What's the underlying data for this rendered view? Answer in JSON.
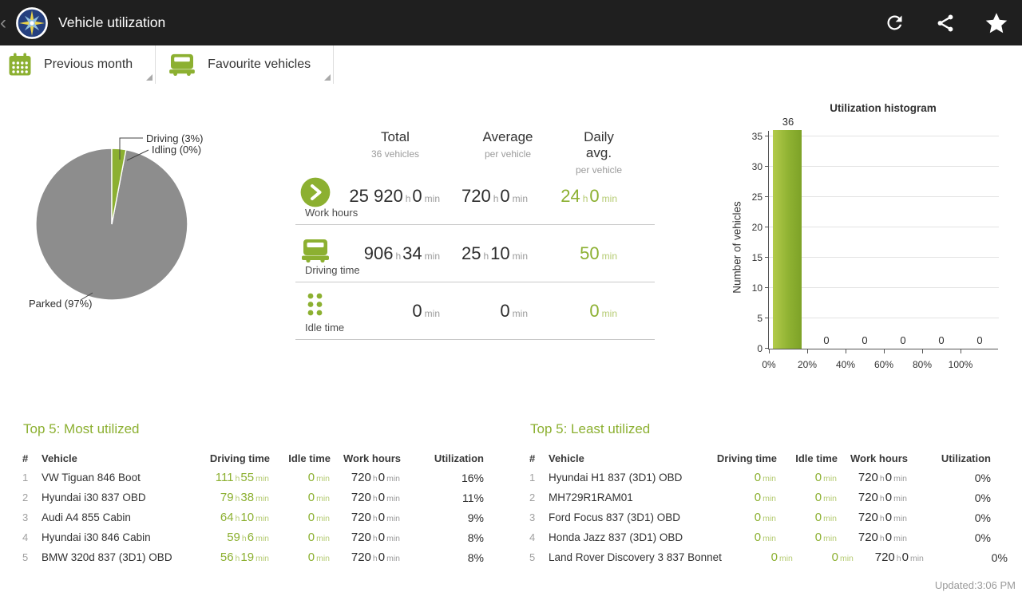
{
  "colors": {
    "accent": "#8cb031",
    "bar_green": "#8fb232",
    "pie_gray": "#8d8d8d",
    "action_bar": "#1f1f1f"
  },
  "action_bar": {
    "back": "‹",
    "title": "Vehicle utilization"
  },
  "filters": {
    "period": "Previous month",
    "vehicles": "Favourite vehicles"
  },
  "pie": {
    "labels": {
      "driving": "Driving (3%)",
      "idling": "Idling (0%)",
      "parked": "Parked (97%)"
    }
  },
  "stats": {
    "columns": [
      {
        "title": "Total",
        "subtitle": "36 vehicles"
      },
      {
        "title": "Average",
        "subtitle": "per vehicle"
      },
      {
        "title": "Daily avg.",
        "subtitle": "per vehicle"
      }
    ],
    "rows": [
      {
        "label": "Work hours",
        "icon": "play-circle-icon",
        "total": [
          [
            "25 920",
            "h"
          ],
          [
            "0",
            "min"
          ]
        ],
        "average": [
          [
            "720",
            "h"
          ],
          [
            "0",
            "min"
          ]
        ],
        "daily": [
          [
            "24",
            "h"
          ],
          [
            "0",
            "min"
          ]
        ]
      },
      {
        "label": "Driving time",
        "icon": "truck-icon",
        "total": [
          [
            "906",
            "h"
          ],
          [
            "34",
            "min"
          ]
        ],
        "average": [
          [
            "25",
            "h"
          ],
          [
            "10",
            "min"
          ]
        ],
        "daily": [
          [
            "50",
            "min"
          ]
        ]
      },
      {
        "label": "Idle time",
        "icon": "traffic-light-icon",
        "total": [
          [
            "0",
            "min"
          ]
        ],
        "average": [
          [
            "0",
            "min"
          ]
        ],
        "daily": [
          [
            "0",
            "min"
          ]
        ]
      }
    ]
  },
  "chart_data": [
    {
      "type": "pie",
      "slices": [
        {
          "label": "Driving",
          "pct": 3,
          "color": "#8cb031"
        },
        {
          "label": "Idling",
          "pct": 0,
          "color": "#8cb031"
        },
        {
          "label": "Parked",
          "pct": 97,
          "color": "#8d8d8d"
        }
      ]
    },
    {
      "type": "bar",
      "title": "Utilization histogram",
      "ylabel": "Number of vehicles",
      "categories": [
        "0%",
        "20%",
        "40%",
        "60%",
        "80%",
        "100%"
      ],
      "values": [
        36,
        0,
        0,
        0,
        0,
        0
      ],
      "yticks": [
        0,
        5,
        10,
        15,
        20,
        25,
        30,
        35
      ],
      "ylim": [
        0,
        36
      ],
      "grid": true,
      "legend": "none"
    }
  ],
  "tables": {
    "most": {
      "title": "Top 5: Most utilized",
      "headers": [
        "#",
        "Vehicle",
        "Driving time",
        "Idle time",
        "Work hours",
        "Utilization"
      ],
      "rows": [
        {
          "rank": "1",
          "vehicle": "VW Tiguan 846 Boot",
          "driving": [
            [
              "111",
              "h"
            ],
            [
              "55",
              "min"
            ]
          ],
          "idle": [
            [
              "0",
              "min"
            ]
          ],
          "work": [
            [
              "720",
              "h"
            ],
            [
              "0",
              "min"
            ]
          ],
          "util": "16%"
        },
        {
          "rank": "2",
          "vehicle": "Hyundai i30 837 OBD",
          "driving": [
            [
              "79",
              "h"
            ],
            [
              "38",
              "min"
            ]
          ],
          "idle": [
            [
              "0",
              "min"
            ]
          ],
          "work": [
            [
              "720",
              "h"
            ],
            [
              "0",
              "min"
            ]
          ],
          "util": "11%"
        },
        {
          "rank": "3",
          "vehicle": "Audi A4 855 Cabin",
          "driving": [
            [
              "64",
              "h"
            ],
            [
              "10",
              "min"
            ]
          ],
          "idle": [
            [
              "0",
              "min"
            ]
          ],
          "work": [
            [
              "720",
              "h"
            ],
            [
              "0",
              "min"
            ]
          ],
          "util": "9%"
        },
        {
          "rank": "4",
          "vehicle": "Hyundai i30 846 Cabin",
          "driving": [
            [
              "59",
              "h"
            ],
            [
              "6",
              "min"
            ]
          ],
          "idle": [
            [
              "0",
              "min"
            ]
          ],
          "work": [
            [
              "720",
              "h"
            ],
            [
              "0",
              "min"
            ]
          ],
          "util": "8%"
        },
        {
          "rank": "5",
          "vehicle": "BMW 320d 837 (3D1) OBD",
          "driving": [
            [
              "56",
              "h"
            ],
            [
              "19",
              "min"
            ]
          ],
          "idle": [
            [
              "0",
              "min"
            ]
          ],
          "work": [
            [
              "720",
              "h"
            ],
            [
              "0",
              "min"
            ]
          ],
          "util": "8%"
        }
      ]
    },
    "least": {
      "title": "Top 5: Least utilized",
      "headers": [
        "#",
        "Vehicle",
        "Driving time",
        "Idle time",
        "Work hours",
        "Utilization"
      ],
      "rows": [
        {
          "rank": "1",
          "vehicle": "Hyundai H1 837 (3D1) OBD",
          "driving": [
            [
              "0",
              "min"
            ]
          ],
          "idle": [
            [
              "0",
              "min"
            ]
          ],
          "work": [
            [
              "720",
              "h"
            ],
            [
              "0",
              "min"
            ]
          ],
          "util": "0%"
        },
        {
          "rank": "2",
          "vehicle": "MH729R1RAM01",
          "driving": [
            [
              "0",
              "min"
            ]
          ],
          "idle": [
            [
              "0",
              "min"
            ]
          ],
          "work": [
            [
              "720",
              "h"
            ],
            [
              "0",
              "min"
            ]
          ],
          "util": "0%"
        },
        {
          "rank": "3",
          "vehicle": "Ford Focus 837 (3D1) OBD",
          "driving": [
            [
              "0",
              "min"
            ]
          ],
          "idle": [
            [
              "0",
              "min"
            ]
          ],
          "work": [
            [
              "720",
              "h"
            ],
            [
              "0",
              "min"
            ]
          ],
          "util": "0%"
        },
        {
          "rank": "4",
          "vehicle": "Honda Jazz 837 (3D1) OBD",
          "driving": [
            [
              "0",
              "min"
            ]
          ],
          "idle": [
            [
              "0",
              "min"
            ]
          ],
          "work": [
            [
              "720",
              "h"
            ],
            [
              "0",
              "min"
            ]
          ],
          "util": "0%"
        },
        {
          "rank": "5",
          "vehicle": "Land Rover Discovery 3 837 Bonnet",
          "driving": [
            [
              "0",
              "min"
            ]
          ],
          "idle": [
            [
              "0",
              "min"
            ]
          ],
          "work": [
            [
              "720",
              "h"
            ],
            [
              "0",
              "min"
            ]
          ],
          "util": "0%"
        }
      ]
    }
  },
  "footer": {
    "updated": "Updated:3:06 PM"
  }
}
